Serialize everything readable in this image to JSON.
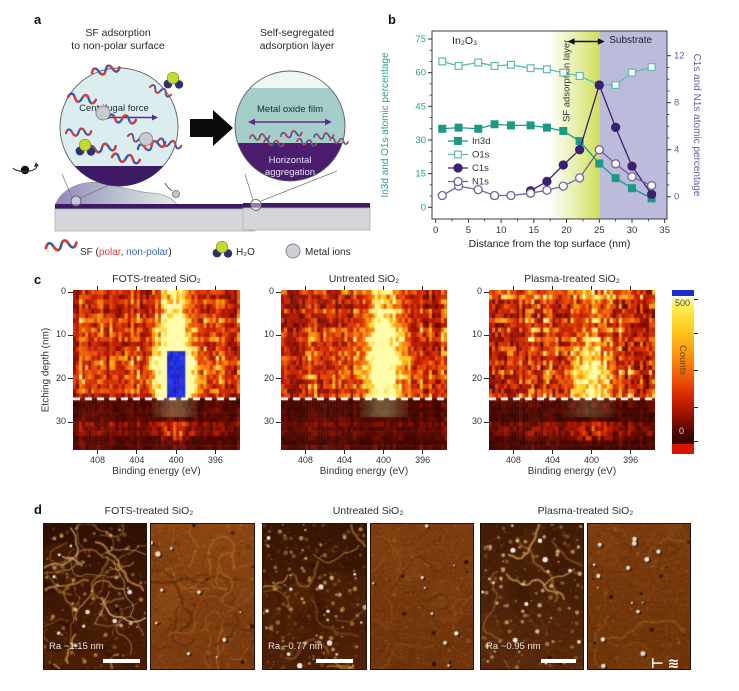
{
  "panel_labels": {
    "a": "a",
    "b": "b",
    "c": "c",
    "d": "d"
  },
  "panel_a": {
    "left_title_line1": "SF adsorption",
    "left_title_line2": "to non-polar surface",
    "right_title_line1": "Self-segregated",
    "right_title_line2": "adsorption layer",
    "centrifugal_force_label": "Centrifugal force",
    "metal_oxide_film_label": "Metal oxide film",
    "horizontal_aggregation_line1": "Horizontal",
    "horizontal_aggregation_line2": "aggregation",
    "legend": {
      "sf_prefix": "SF (",
      "sf_polar": "polar",
      "sf_separator": ", ",
      "sf_nonpolar": "non-polar",
      "sf_suffix": ")",
      "polar_color": "#d94040",
      "nonpolar_color": "#3a66b0",
      "h2o_label": "H₂O",
      "metal_ions_label": "Metal ions"
    }
  },
  "chart_data": [
    {
      "type": "line",
      "panel": "b",
      "xlabel": "Distance from the top surface (nm)",
      "ylabel_left": "In3d and O1s atomic percentage",
      "ylabel_right": "C1s and N1s atomic percentage",
      "xlim": [
        0,
        35
      ],
      "xticks": [
        0,
        5,
        10,
        15,
        20,
        25,
        30,
        35
      ],
      "yticks_left": [
        0,
        15,
        30,
        45,
        60,
        75
      ],
      "yticks_right": [
        0,
        4,
        8,
        12
      ],
      "axis_color_left": "#2aa08e",
      "axis_color_right": "#6a5aa0",
      "legend_position": "left-middle",
      "annotations": {
        "material": "In₂O₃",
        "sf_layer": "SF adsorption layer",
        "substrate": "Substrate"
      },
      "regions": [
        {
          "name": "sf-adsorption-layer",
          "x_start": 17.3,
          "x_end": 25,
          "color": "#cede52",
          "style": "gradient"
        },
        {
          "name": "substrate",
          "x_start": 25,
          "x_end": 36,
          "color": "#bdbbdb",
          "style": "solid"
        }
      ],
      "arrow_span_nm": [
        20.3,
        25.7
      ],
      "series": [
        {
          "name": "In3d",
          "axis": "left",
          "marker": "square",
          "fill": "filled",
          "color": "#1a9a85",
          "x": [
            1,
            3.5,
            6.5,
            9,
            11.5,
            14.5,
            17,
            19.5,
            22,
            25,
            27.5,
            30,
            33
          ],
          "y": [
            35,
            35.5,
            35,
            37,
            36.5,
            36.5,
            35.5,
            34,
            29.5,
            19.5,
            13,
            8.5,
            4
          ]
        },
        {
          "name": "O1s",
          "axis": "left",
          "marker": "square",
          "fill": "open",
          "color": "#5ebbae",
          "x": [
            1,
            3.5,
            6.5,
            9,
            11.5,
            14.5,
            17,
            19.5,
            22,
            25,
            27.5,
            30,
            33
          ],
          "y": [
            65,
            63,
            64.5,
            63,
            63.5,
            62,
            61.5,
            60,
            58.5,
            54.5,
            54.5,
            60,
            62.5
          ]
        },
        {
          "name": "C1s",
          "axis": "right",
          "marker": "circle",
          "fill": "filled",
          "color": "#3b2072",
          "x": [
            14.5,
            17,
            19.5,
            22,
            25,
            27.5,
            30,
            33
          ],
          "y": [
            0.5,
            1.3,
            2.7,
            4.0,
            9.5,
            5.9,
            2.6,
            0.2
          ]
        },
        {
          "name": "N1s",
          "axis": "right",
          "marker": "circle",
          "fill": "open",
          "color": "#71619f",
          "x": [
            1,
            3.5,
            6.5,
            9,
            11.5,
            14.5,
            17,
            19.5,
            22,
            25,
            27.5,
            30,
            33
          ],
          "y": [
            0.1,
            0.9,
            0.6,
            0.1,
            0.1,
            0.3,
            0.55,
            0.9,
            1.6,
            4.0,
            2.8,
            1.7,
            0.95
          ]
        }
      ]
    },
    {
      "type": "heatmap",
      "panel": "c",
      "xlabel": "Binding energy (eV)",
      "ylabel": "Etching depth (nm)",
      "xticks": [
        408,
        404,
        400,
        396
      ],
      "yticks": [
        0,
        10,
        20,
        30
      ],
      "be_range": [
        410.5,
        393.5
      ],
      "depth_range": [
        0,
        36
      ],
      "dashed_line_depth": 24.5,
      "colorbar": {
        "label": "Counts",
        "max_label": "500",
        "min_label": "0"
      },
      "maps": [
        {
          "title": "FOTS-treated SiO₂",
          "hotspot_be": 400.1,
          "hotspot_sigma": 1.35,
          "peak_depth": 19.5,
          "intensity": "saturated-blue",
          "seed": 7
        },
        {
          "title": "Untreated SiO₂",
          "hotspot_be": 400.0,
          "hotspot_sigma": 1.5,
          "peak_depth": 15,
          "intensity": "high-yellow",
          "seed": 13
        },
        {
          "title": "Plasma-treated SiO₂",
          "hotspot_be": 400.2,
          "hotspot_sigma": 1.6,
          "peak_depth": 21,
          "intensity": "moderate",
          "seed": 29
        }
      ]
    }
  ],
  "panel_d": {
    "titles": [
      "FOTS-treated SiO₂",
      "Untreated SiO₂",
      "Plasma-treated SiO₂"
    ],
    "ra_labels": [
      "Ra ~1.15 nm",
      "Ra ~0.77 nm",
      "Ra ~0.95 nm"
    ],
    "watermark": "⊢ ≋"
  }
}
